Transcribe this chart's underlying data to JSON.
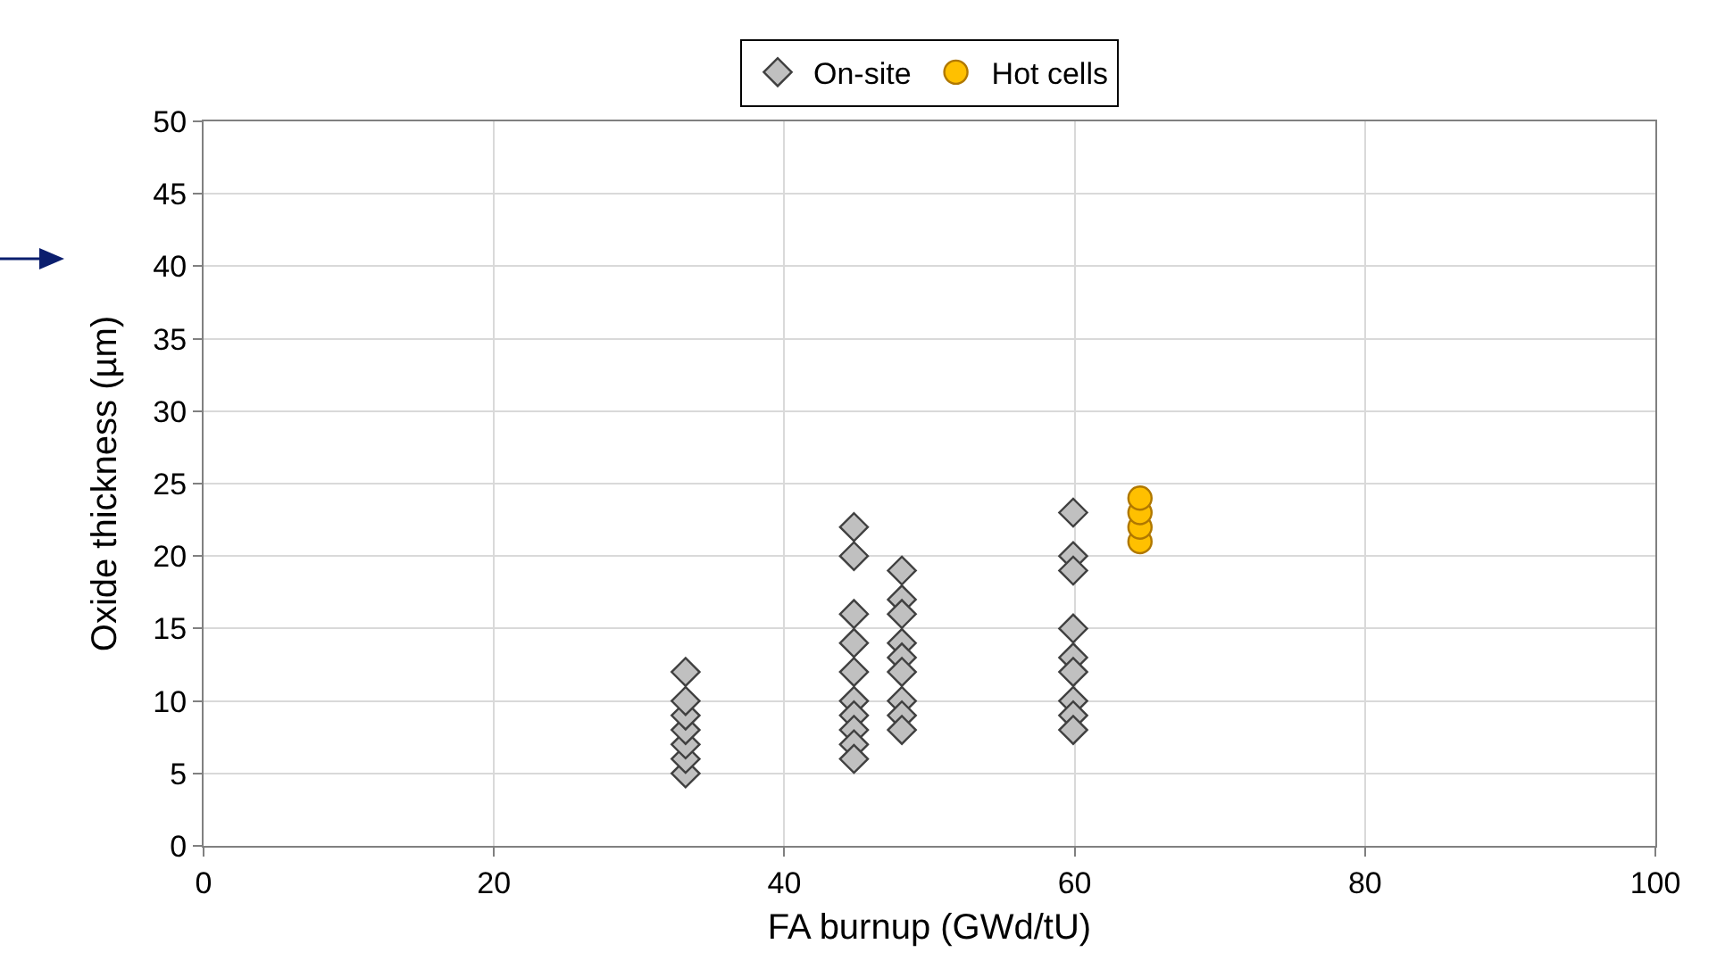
{
  "chart_data": {
    "type": "scatter",
    "xlabel": "FA burnup (GWd/tU)",
    "ylabel": "Oxide thickness (µm)",
    "xlim": [
      0,
      100
    ],
    "xticks": [
      0,
      20,
      40,
      60,
      80,
      100
    ],
    "ylim": [
      0,
      50
    ],
    "yticks": [
      0,
      5,
      10,
      15,
      20,
      25,
      30,
      35,
      40,
      45,
      50
    ],
    "grid": true,
    "legend": "top",
    "series": [
      {
        "name": "On-site",
        "color": "#c0c0c0",
        "marker": "diamond",
        "x": [
          33.2,
          33.2,
          33.2,
          33.2,
          33.2,
          33.2,
          33.2,
          44.8,
          44.8,
          44.8,
          44.8,
          44.8,
          44.8,
          44.8,
          44.8,
          44.8,
          44.8,
          48.1,
          48.1,
          48.1,
          48.1,
          48.1,
          48.1,
          48.1,
          48.1,
          48.1,
          59.9,
          59.9,
          59.9,
          59.9,
          59.9,
          59.9,
          59.9,
          59.9,
          59.9
        ],
        "values": [
          5,
          6,
          7,
          8,
          9,
          10,
          12,
          22,
          20,
          16,
          14,
          12,
          10,
          9,
          8,
          7,
          6,
          19,
          17,
          16,
          14,
          13,
          12,
          10,
          9,
          8,
          23,
          20,
          19,
          15,
          13,
          12,
          10,
          9,
          8
        ]
      },
      {
        "name": "Hot cells",
        "color": "#ffc000",
        "marker": "circle",
        "x": [
          64.5,
          64.5,
          64.5,
          64.5
        ],
        "values": [
          21,
          22,
          23,
          24
        ]
      }
    ]
  }
}
